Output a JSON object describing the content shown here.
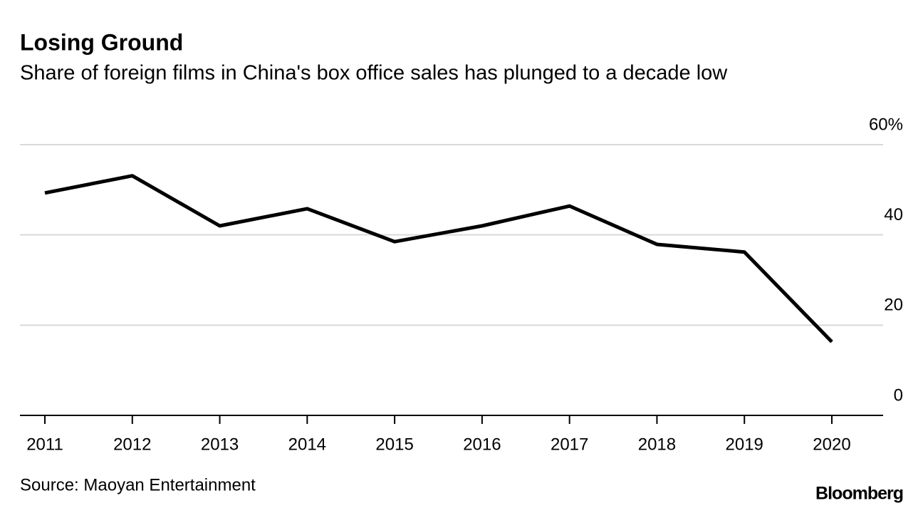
{
  "chart_data": {
    "type": "line",
    "title": "Losing Ground",
    "subtitle": "Share of foreign films in China's box office sales has plunged to a decade low",
    "categories": [
      "2011",
      "2012",
      "2013",
      "2014",
      "2015",
      "2016",
      "2017",
      "2018",
      "2019",
      "2020"
    ],
    "series": [
      {
        "name": "Foreign films share",
        "color": "#000000",
        "values": [
          49.3,
          53.1,
          42.0,
          45.8,
          38.5,
          42.0,
          46.4,
          37.9,
          36.2,
          16.3
        ]
      }
    ],
    "ylim": [
      0,
      60
    ],
    "yticks": [
      0,
      20,
      40,
      {
        "value": 60,
        "label": "60%"
      }
    ],
    "grid": true,
    "source": "Source: Maoyan Entertainment",
    "brand": "Bloomberg"
  }
}
